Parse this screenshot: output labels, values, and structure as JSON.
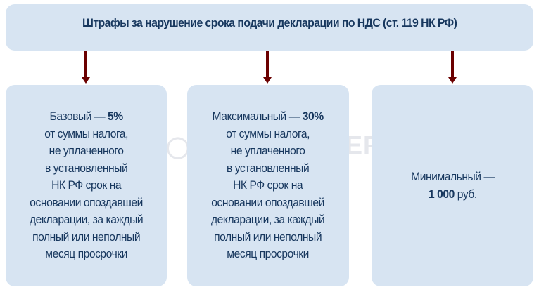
{
  "title": "Штрафы за нарушение срока подачи декларации по НДС (ст. 119 НК РФ)",
  "watermark": "БУХЭКСПЕРТ",
  "colors": {
    "box": "#d7e4f2",
    "text": "#17375e",
    "arrow": "#6b0000"
  },
  "cards": [
    {
      "label": "Базовый — ",
      "value": "5%",
      "rest": "от суммы налога,\nне уплаченного\nв установленный\nНК РФ срок на\nосновании опоздавшей\nдекларации, за каждый\nполный или неполный\nмесяц просрочки"
    },
    {
      "label": "Максимальный — ",
      "value": "30%",
      "rest": "от суммы налога,\nне уплаченного\nв установленный\nНК РФ срок на\nосновании опоздавшей\nдекларации, за каждый\nполный или неполный\nмесяц просрочки"
    },
    {
      "label": "Минимальный —",
      "value": "1 000",
      "rest": " руб."
    }
  ]
}
